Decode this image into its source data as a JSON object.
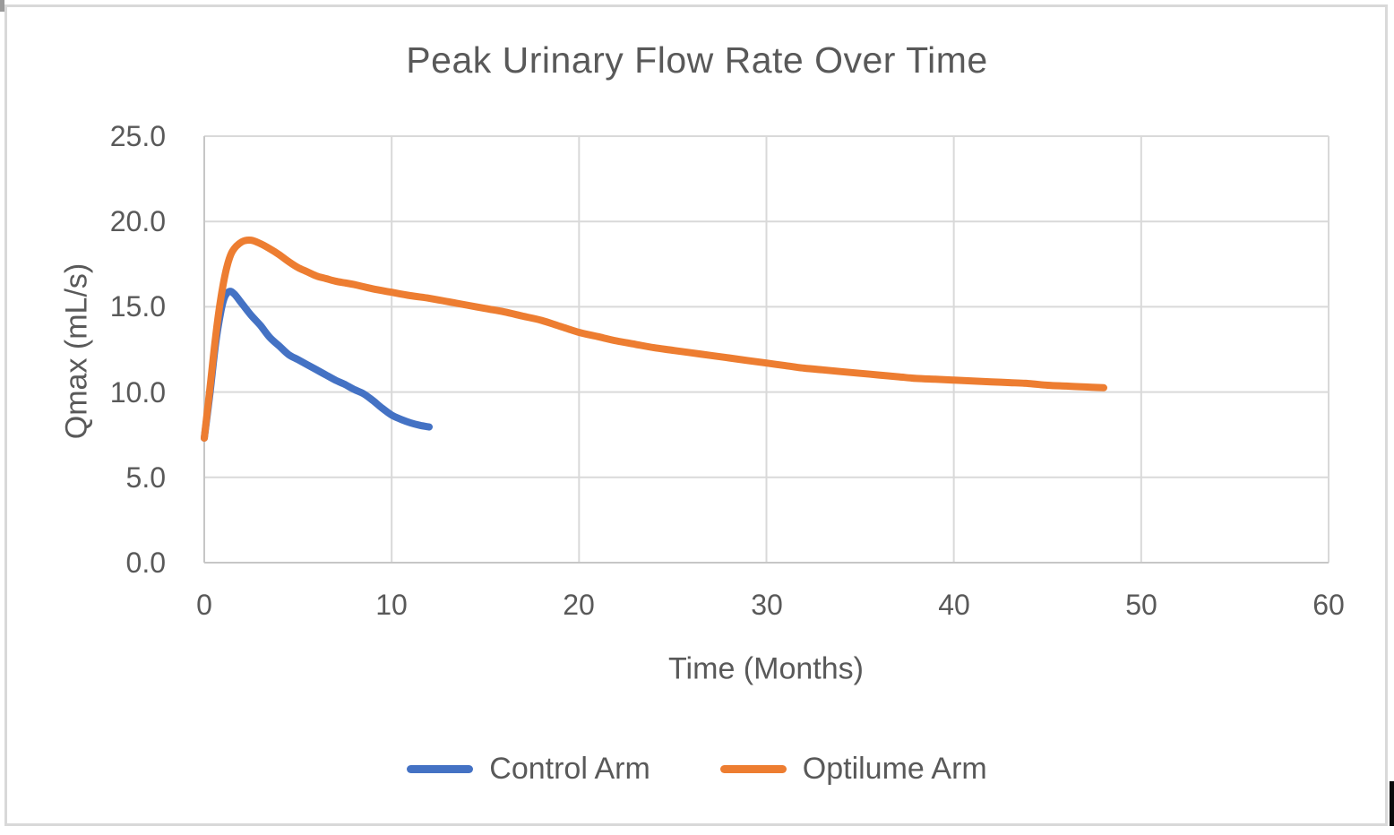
{
  "chart_data": {
    "type": "line",
    "title": "Peak Urinary Flow Rate Over Time",
    "xlabel": "Time (Months)",
    "ylabel": "Qmax (mL/s)",
    "xlim": [
      0,
      60
    ],
    "ylim": [
      0,
      25
    ],
    "x_ticks": [
      "0",
      "10",
      "20",
      "30",
      "40",
      "50",
      "60"
    ],
    "y_ticks": [
      "25.0",
      "20.0",
      "15.0",
      "10.0",
      "5.0",
      "0.0"
    ],
    "grid": true,
    "legend_position": "bottom",
    "colors": {
      "gridline": "#D9D9D9",
      "axis": "#C6C6C6",
      "text": "#595959",
      "background": "#FFFFFF",
      "frame_border": "#D9D9D9"
    },
    "series": [
      {
        "name": "Control Arm",
        "color": "#4472C4",
        "points": [
          [
            0,
            7.3
          ],
          [
            0.3,
            9.9
          ],
          [
            0.6,
            12.8
          ],
          [
            0.9,
            14.8
          ],
          [
            1.1,
            15.6
          ],
          [
            1.35,
            15.9
          ],
          [
            1.6,
            15.75
          ],
          [
            2,
            15.2
          ],
          [
            2.5,
            14.5
          ],
          [
            3,
            13.9
          ],
          [
            3.5,
            13.2
          ],
          [
            4,
            12.7
          ],
          [
            4.5,
            12.2
          ],
          [
            5,
            11.9
          ],
          [
            5.5,
            11.6
          ],
          [
            6,
            11.3
          ],
          [
            6.5,
            11.0
          ],
          [
            7,
            10.7
          ],
          [
            7.5,
            10.45
          ],
          [
            8,
            10.15
          ],
          [
            8.5,
            9.9
          ],
          [
            9,
            9.5
          ],
          [
            9.5,
            9.05
          ],
          [
            10,
            8.65
          ],
          [
            10.5,
            8.4
          ],
          [
            11,
            8.2
          ],
          [
            11.5,
            8.05
          ],
          [
            12,
            7.95
          ]
        ]
      },
      {
        "name": "Optilume Arm",
        "color": "#ED7D31",
        "points": [
          [
            0,
            7.3
          ],
          [
            0.3,
            10.2
          ],
          [
            0.6,
            13.2
          ],
          [
            0.9,
            15.6
          ],
          [
            1.2,
            17.3
          ],
          [
            1.5,
            18.25
          ],
          [
            2,
            18.8
          ],
          [
            2.5,
            18.9
          ],
          [
            3,
            18.7
          ],
          [
            3.5,
            18.4
          ],
          [
            4,
            18.05
          ],
          [
            4.5,
            17.65
          ],
          [
            5,
            17.3
          ],
          [
            5.5,
            17.05
          ],
          [
            6,
            16.8
          ],
          [
            6.5,
            16.65
          ],
          [
            7,
            16.5
          ],
          [
            7.5,
            16.4
          ],
          [
            8,
            16.3
          ],
          [
            9,
            16.05
          ],
          [
            10,
            15.85
          ],
          [
            11,
            15.65
          ],
          [
            12,
            15.5
          ],
          [
            13,
            15.3
          ],
          [
            14,
            15.1
          ],
          [
            15,
            14.9
          ],
          [
            16,
            14.7
          ],
          [
            17,
            14.45
          ],
          [
            18,
            14.2
          ],
          [
            19,
            13.85
          ],
          [
            20,
            13.5
          ],
          [
            21,
            13.25
          ],
          [
            22,
            13.0
          ],
          [
            23,
            12.8
          ],
          [
            24,
            12.6
          ],
          [
            25,
            12.45
          ],
          [
            26,
            12.3
          ],
          [
            27,
            12.15
          ],
          [
            28,
            12.0
          ],
          [
            29,
            11.85
          ],
          [
            30,
            11.7
          ],
          [
            31,
            11.55
          ],
          [
            32,
            11.4
          ],
          [
            33,
            11.3
          ],
          [
            34,
            11.2
          ],
          [
            35,
            11.1
          ],
          [
            36,
            11.0
          ],
          [
            37,
            10.9
          ],
          [
            38,
            10.8
          ],
          [
            39,
            10.75
          ],
          [
            40,
            10.7
          ],
          [
            41,
            10.65
          ],
          [
            42,
            10.6
          ],
          [
            43,
            10.55
          ],
          [
            44,
            10.5
          ],
          [
            45,
            10.4
          ],
          [
            46,
            10.35
          ],
          [
            47,
            10.3
          ],
          [
            48,
            10.25
          ]
        ]
      }
    ]
  }
}
